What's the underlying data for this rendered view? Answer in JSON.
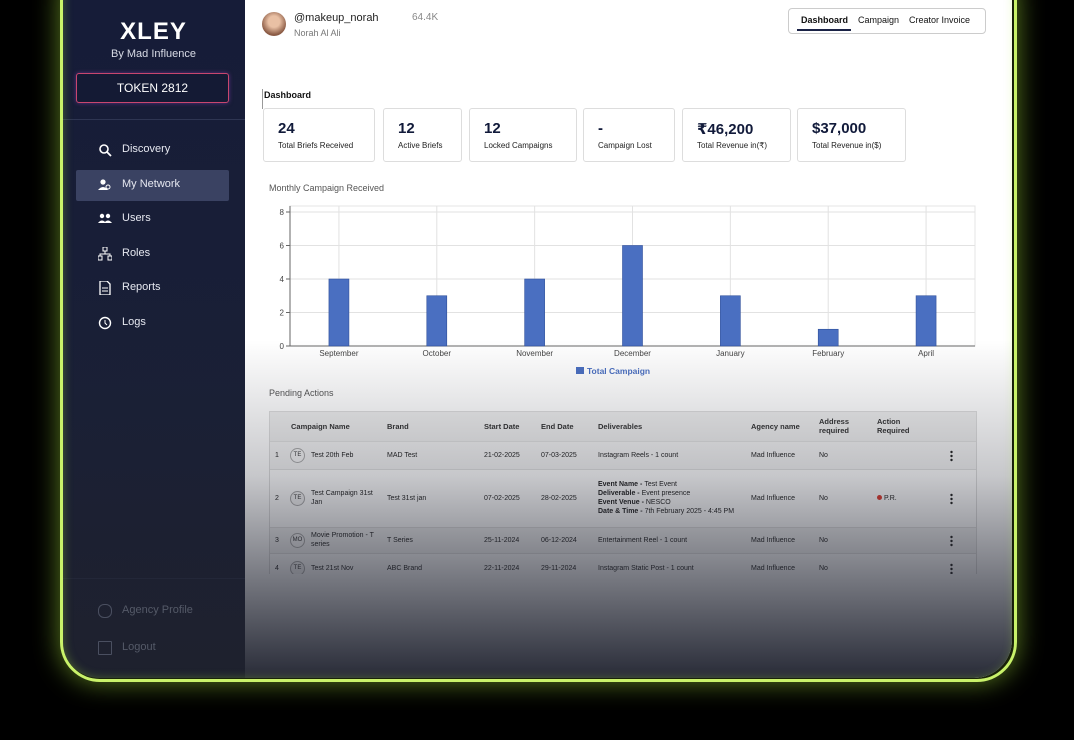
{
  "sidebar": {
    "logo": "XLEY",
    "tagline": "By Mad Influence",
    "token": "TOKEN 2812",
    "menu": [
      "Discovery",
      "My Network",
      "Users",
      "Roles",
      "Reports",
      "Logs"
    ],
    "footer": [
      "Agency Profile",
      "Logout"
    ]
  },
  "profile": {
    "handle": "@makeup_norah",
    "name": "Norah Al Ali",
    "followers": "64.4K"
  },
  "tabs": [
    "Dashboard",
    "Campaign",
    "Creator Invoice"
  ],
  "section_title": "Dashboard",
  "stats": [
    {
      "value": "24",
      "label": "Total Briefs Received"
    },
    {
      "value": "12",
      "label": "Active Briefs"
    },
    {
      "value": "12",
      "label": "Locked Campaigns"
    },
    {
      "value": "-",
      "label": "Campaign Lost"
    },
    {
      "value": "₹46,200",
      "label": "Total Revenue in(₹)"
    },
    {
      "value": "$37,000",
      "label": "Total Revenue in($)"
    }
  ],
  "chart_data": {
    "type": "bar",
    "title": "Monthly Campaign Received",
    "categories": [
      "September",
      "October",
      "November",
      "December",
      "January",
      "February",
      "April"
    ],
    "series": [
      {
        "name": "Total Campaign",
        "color": "#4a6fc1",
        "values": [
          4,
          3,
          4,
          6,
          3,
          1,
          3
        ]
      }
    ],
    "ylim": [
      0,
      8
    ],
    "yticks": [
      0,
      2,
      4,
      6,
      8
    ],
    "grid": true
  },
  "pending": {
    "title": "Pending Actions",
    "columns": [
      "Campaign Name",
      "Brand",
      "Start Date",
      "End Date",
      "Deliverables",
      "Agency name",
      "Address required",
      "Action Required"
    ],
    "rows": [
      {
        "no": "1",
        "avatar": "TE",
        "campaign": "Test 20th Feb",
        "brand": "MAD Test",
        "start": "21-02-2025",
        "end": "07-03-2025",
        "deliverables": [
          {
            "value": "Instagram Reels  - 1 count"
          }
        ],
        "agency": "Mad Influence",
        "address": "No"
      },
      {
        "no": "2",
        "avatar": "TE",
        "campaign": "Test Campaign 31st Jan",
        "brand": "Test 31st jan",
        "start": "07-02-2025",
        "end": "28-02-2025",
        "deliverables": [
          {
            "label": "Event Name -",
            "value": "Test Event"
          },
          {
            "label": "Deliverable -",
            "value": "Event presence"
          },
          {
            "label": "Event Venue -",
            "value": "NESCO"
          },
          {
            "label": "Date & Time -",
            "value": "7th February 2025 - 4:45 PM"
          }
        ],
        "agency": "Mad Influence",
        "address": "No",
        "action": "P.R."
      },
      {
        "no": "3",
        "avatar": "MO",
        "campaign": "Movie Promotion - T series",
        "brand": "T Series",
        "start": "25-11-2024",
        "end": "06-12-2024",
        "deliverables": [
          {
            "value": "Entertainment Reel  - 1 count"
          }
        ],
        "agency": "Mad Influence",
        "address": "No"
      },
      {
        "no": "4",
        "avatar": "TE",
        "campaign": "Test 21st Nov",
        "brand": "ABC Brand",
        "start": "22-11-2024",
        "end": "29-11-2024",
        "deliverables": [
          {
            "value": "Instagram Static Post  - 1 count"
          }
        ],
        "agency": "Mad Influence",
        "address": "No"
      }
    ]
  }
}
